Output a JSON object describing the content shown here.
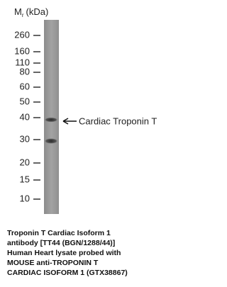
{
  "header": {
    "symbol": "M",
    "subscript": "r",
    "unit": "(kDa)"
  },
  "markers": [
    "260",
    "160",
    "110",
    "80",
    "60",
    "50",
    "40",
    "30",
    "20",
    "15",
    "10"
  ],
  "band_label": "Cardiac Troponin T",
  "caption": [
    "Troponin T Cardiac Isoform 1",
    "antibody [TT44 (BGN/1288/44)]",
    "Human Heart lysate probed with",
    "MOUSE anti-TROPONIN T",
    "CARDIAC ISOFORM 1 (GTX38867)"
  ]
}
